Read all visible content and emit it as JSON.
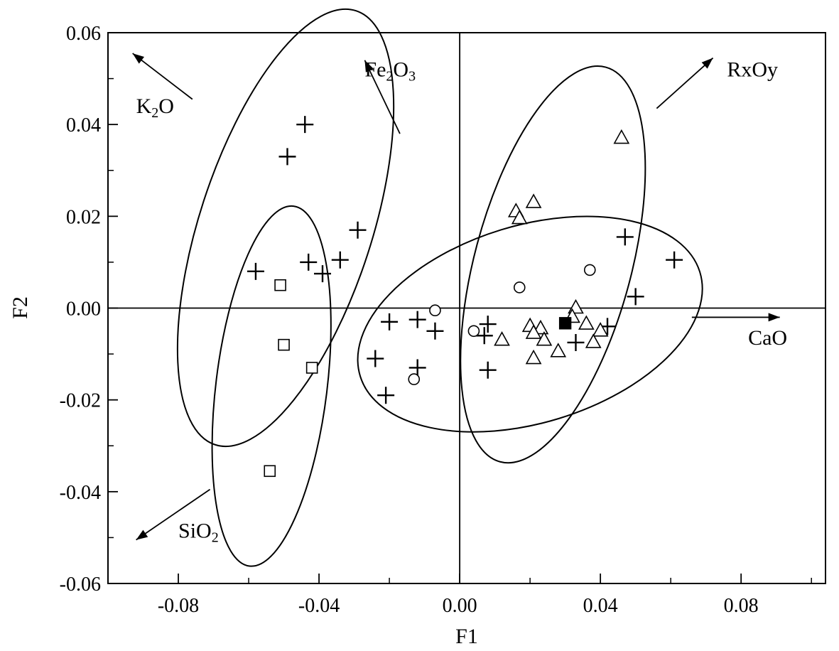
{
  "chart_data": {
    "type": "scatter",
    "title": "",
    "xlabel": "F1",
    "ylabel": "F2",
    "xlim": [
      -0.1,
      0.104
    ],
    "ylim": [
      -0.06,
      0.06
    ],
    "x_ticks": [
      -0.08,
      -0.04,
      0.0,
      0.04,
      0.08
    ],
    "y_ticks": [
      0.06,
      0.04,
      0.02,
      0.0,
      -0.02,
      -0.04,
      -0.06
    ],
    "x_tick_labels": [
      "-0.08",
      "-0.04",
      "0.00",
      "0.04",
      "0.08"
    ],
    "y_tick_labels": [
      "0.06",
      "0.04",
      "0.02",
      "0.00",
      "-0.02",
      "-0.04",
      "-0.06"
    ],
    "grid": false,
    "reference_lines": {
      "x": 0,
      "y": 0
    },
    "series": [
      {
        "marker": "plus",
        "points": [
          [
            -0.044,
            0.04
          ],
          [
            -0.049,
            0.033
          ],
          [
            -0.029,
            0.017
          ],
          [
            -0.034,
            0.0105
          ],
          [
            -0.043,
            0.01
          ],
          [
            -0.039,
            0.0075
          ],
          [
            -0.058,
            0.008
          ],
          [
            -0.02,
            -0.003
          ],
          [
            -0.012,
            -0.0025
          ],
          [
            -0.007,
            -0.005
          ],
          [
            -0.012,
            -0.013
          ],
          [
            -0.024,
            -0.011
          ],
          [
            -0.021,
            -0.019
          ],
          [
            0.008,
            -0.0035
          ],
          [
            0.007,
            -0.006
          ],
          [
            0.008,
            -0.0135
          ],
          [
            0.047,
            0.0155
          ],
          [
            0.061,
            0.0105
          ],
          [
            0.05,
            0.0025
          ],
          [
            0.042,
            -0.004
          ],
          [
            0.033,
            -0.0075
          ]
        ]
      },
      {
        "marker": "circle",
        "points": [
          [
            -0.007,
            -0.0005
          ],
          [
            0.004,
            -0.005
          ],
          [
            -0.013,
            -0.0155
          ],
          [
            0.017,
            0.0045
          ],
          [
            0.037,
            0.0083
          ]
        ]
      },
      {
        "marker": "triangle",
        "points": [
          [
            0.046,
            0.037
          ],
          [
            0.016,
            0.021
          ],
          [
            0.017,
            0.0195
          ],
          [
            0.021,
            0.023
          ],
          [
            0.033,
            0.0
          ],
          [
            0.032,
            -0.002
          ],
          [
            0.02,
            -0.004
          ],
          [
            0.023,
            -0.0045
          ],
          [
            0.021,
            -0.0055
          ],
          [
            0.024,
            -0.007
          ],
          [
            0.012,
            -0.007
          ],
          [
            0.036,
            -0.0035
          ],
          [
            0.04,
            -0.005
          ],
          [
            0.038,
            -0.0075
          ],
          [
            0.028,
            -0.0095
          ],
          [
            0.021,
            -0.011
          ]
        ]
      },
      {
        "marker": "square",
        "points": [
          [
            -0.051,
            0.005
          ],
          [
            -0.05,
            -0.008
          ],
          [
            -0.042,
            -0.013
          ],
          [
            -0.054,
            -0.0355
          ]
        ]
      },
      {
        "marker": "filled-square",
        "points": [
          [
            0.03,
            -0.0033
          ]
        ]
      }
    ],
    "ellipses": [
      {
        "cx": -0.0495,
        "cy": 0.0175,
        "rx": 0.0245,
        "ry": 0.0497,
        "angle_deg": 18
      },
      {
        "cx": -0.0535,
        "cy": -0.017,
        "rx": 0.0158,
        "ry": 0.0395,
        "angle_deg": 7
      },
      {
        "cx": 0.0265,
        "cy": 0.0095,
        "rx": 0.0223,
        "ry": 0.0445,
        "angle_deg": 15
      },
      {
        "cx": 0.02,
        "cy": -0.0035,
        "rx": 0.0505,
        "ry": 0.0215,
        "angle_deg": -17
      }
    ],
    "annotations": [
      {
        "label_main": "K",
        "label_sub": "2",
        "label_tail": "O",
        "x": -0.092,
        "y": 0.0425,
        "arrow_from": [
          -0.076,
          0.0455
        ],
        "arrow_to": [
          -0.093,
          0.0555
        ]
      },
      {
        "label_main": "Fe",
        "label_sub": "2",
        "label_tail": "O",
        "label_sub2": "3",
        "x": -0.027,
        "y": 0.0505,
        "arrow_from": [
          -0.017,
          0.038
        ],
        "arrow_to": [
          -0.027,
          0.054
        ]
      },
      {
        "label_main": "RxOy",
        "x": 0.076,
        "y": 0.0505,
        "arrow_from": [
          0.056,
          0.0435
        ],
        "arrow_to": [
          0.072,
          0.0545
        ]
      },
      {
        "label_main": "CaO",
        "x": 0.082,
        "y": -0.008,
        "arrow_from": [
          0.066,
          -0.002
        ],
        "arrow_to": [
          0.091,
          -0.002
        ]
      },
      {
        "label_main": "SiO",
        "label_sub": "2",
        "x": -0.08,
        "y": -0.05,
        "arrow_from": [
          -0.071,
          -0.0395
        ],
        "arrow_to": [
          -0.092,
          -0.0505
        ]
      }
    ]
  }
}
